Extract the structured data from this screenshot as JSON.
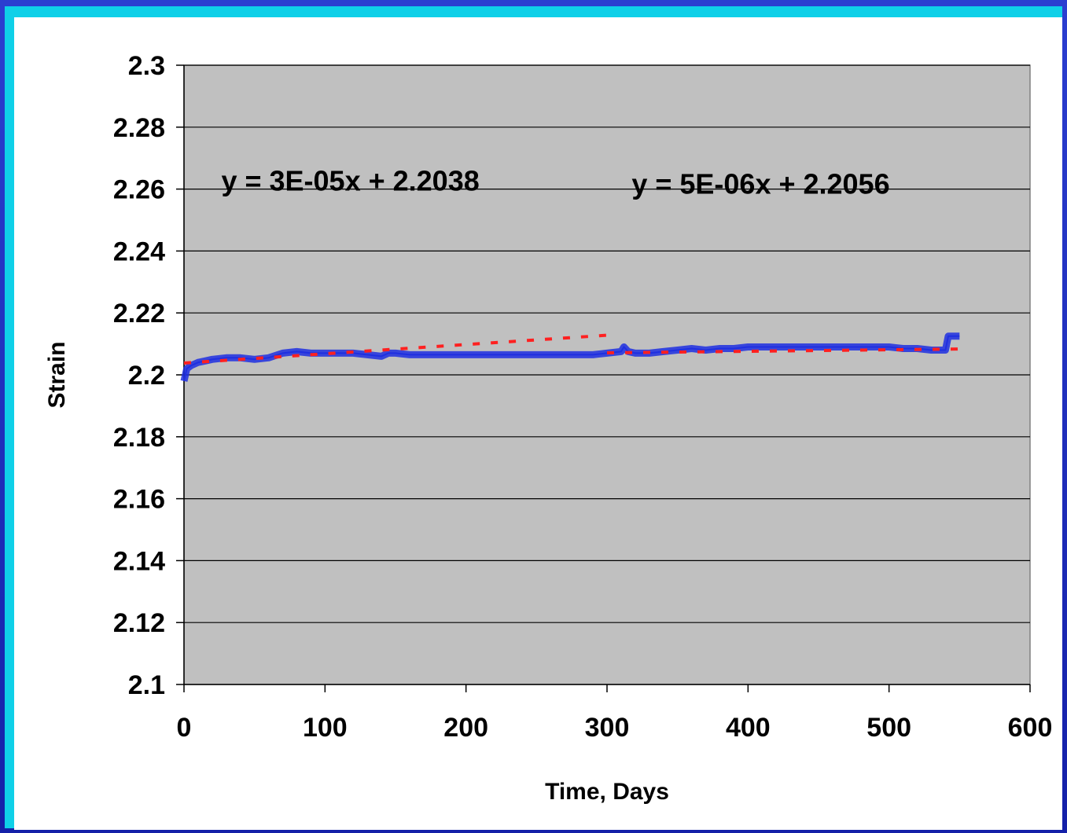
{
  "chart_data": {
    "type": "line",
    "xlabel": "Time, Days",
    "ylabel": "Strain",
    "xlim": [
      0,
      600
    ],
    "ylim": [
      2.1,
      2.3
    ],
    "x_ticks": [
      "0",
      "100",
      "200",
      "300",
      "400",
      "500",
      "600"
    ],
    "y_ticks": [
      "2.1",
      "2.12",
      "2.14",
      "2.16",
      "2.18",
      "2.2",
      "2.22",
      "2.24",
      "2.26",
      "2.28",
      "2.3"
    ],
    "grid": "horizontal",
    "plot_background": "#c0c0c0",
    "series": [
      {
        "color": "#1f2fe0",
        "style": "solid",
        "x": [
          0,
          2,
          5,
          10,
          15,
          20,
          30,
          40,
          50,
          60,
          70,
          80,
          90,
          100,
          110,
          120,
          130,
          140,
          145,
          150,
          160,
          170,
          180,
          200,
          220,
          240,
          260,
          280,
          290,
          300,
          310,
          312,
          315,
          320,
          330,
          340,
          350,
          360,
          370,
          380,
          390,
          400,
          410,
          420,
          440,
          460,
          480,
          500,
          510,
          520,
          530,
          540,
          542,
          550
        ],
        "y": [
          2.198,
          2.202,
          2.203,
          2.204,
          2.2045,
          2.205,
          2.2055,
          2.2055,
          2.205,
          2.2055,
          2.207,
          2.2075,
          2.207,
          2.207,
          2.207,
          2.207,
          2.2065,
          2.206,
          2.207,
          2.207,
          2.2065,
          2.2065,
          2.2065,
          2.2065,
          2.2065,
          2.2065,
          2.2065,
          2.2065,
          2.2065,
          2.207,
          2.2075,
          2.209,
          2.2075,
          2.207,
          2.207,
          2.2075,
          2.208,
          2.2085,
          2.208,
          2.2085,
          2.2085,
          2.209,
          2.209,
          2.209,
          2.209,
          2.209,
          2.209,
          2.209,
          2.2085,
          2.2085,
          2.208,
          2.208,
          2.2125,
          2.2125
        ]
      },
      {
        "color": "#ff2020",
        "style": "dashed",
        "x": [
          0,
          300
        ],
        "y": [
          2.2038,
          2.2128
        ]
      },
      {
        "color": "#ff2020",
        "style": "dashed",
        "x": [
          300,
          550
        ],
        "y": [
          2.2071,
          2.20835
        ]
      }
    ],
    "annotations": [
      {
        "text": "y = 3E-05x + 2.2038",
        "x": 118,
        "y": 2.2595
      },
      {
        "text": "y = 5E-06x + 2.2056",
        "x": 409,
        "y": 2.2585
      }
    ]
  }
}
